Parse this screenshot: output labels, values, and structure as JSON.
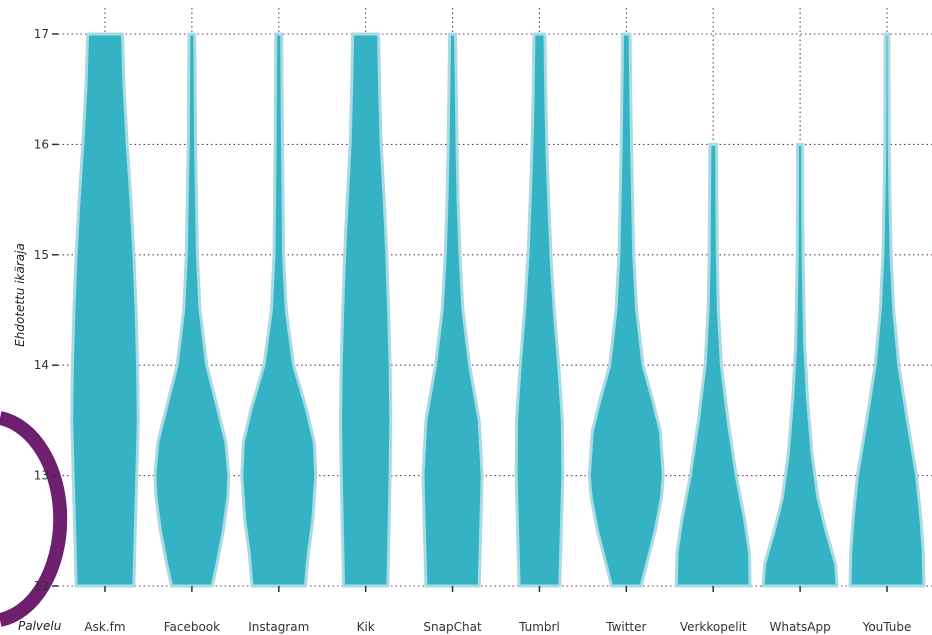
{
  "colors": {
    "violin_fill": "#35b3c5",
    "violin_outline": "#a9dbe2",
    "grid": "#7b2a78",
    "decor_arc": "#6e1f6e",
    "text": "#333333"
  },
  "chart_data": {
    "type": "violin",
    "title": "",
    "xlabel": "Palvelu",
    "ylabel": "Ehdotettu ikäraja",
    "ylim": [
      12,
      17
    ],
    "yticks": [
      "12",
      "13",
      "14",
      "15",
      "16",
      "17"
    ],
    "grid": true,
    "grid_style": "dotted",
    "categories": [
      "Ask.fm",
      "Facebook",
      "Instagram",
      "Kik",
      "SnapChat",
      "Tumbrl",
      "Twitter",
      "Verkkopelit",
      "WhatsApp",
      "YouTube"
    ],
    "violins": [
      {
        "category": "Ask.fm",
        "min": 12,
        "max": 17,
        "profile": [
          [
            12,
            0.78
          ],
          [
            12.5,
            0.82
          ],
          [
            13,
            0.86
          ],
          [
            13.5,
            0.9
          ],
          [
            14,
            0.88
          ],
          [
            14.5,
            0.84
          ],
          [
            15,
            0.78
          ],
          [
            15.5,
            0.7
          ],
          [
            16,
            0.6
          ],
          [
            16.5,
            0.52
          ],
          [
            17,
            0.47
          ]
        ]
      },
      {
        "category": "Facebook",
        "min": 12,
        "max": 17,
        "profile": [
          [
            12,
            0.55
          ],
          [
            12.2,
            0.68
          ],
          [
            12.5,
            0.85
          ],
          [
            12.8,
            0.97
          ],
          [
            13,
            1.0
          ],
          [
            13.3,
            0.92
          ],
          [
            13.6,
            0.7
          ],
          [
            14,
            0.4
          ],
          [
            14.5,
            0.22
          ],
          [
            15,
            0.15
          ],
          [
            16,
            0.1
          ],
          [
            17,
            0.08
          ]
        ]
      },
      {
        "category": "Instagram",
        "min": 12,
        "max": 17,
        "profile": [
          [
            12,
            0.72
          ],
          [
            12.3,
            0.8
          ],
          [
            12.6,
            0.92
          ],
          [
            13,
            1.0
          ],
          [
            13.3,
            0.96
          ],
          [
            13.6,
            0.75
          ],
          [
            14,
            0.4
          ],
          [
            14.5,
            0.2
          ],
          [
            15,
            0.13
          ],
          [
            16,
            0.1
          ],
          [
            17,
            0.08
          ]
        ]
      },
      {
        "category": "Kik",
        "min": 12,
        "max": 17,
        "profile": [
          [
            12,
            0.6
          ],
          [
            12.5,
            0.63
          ],
          [
            13,
            0.66
          ],
          [
            13.5,
            0.68
          ],
          [
            14,
            0.66
          ],
          [
            14.5,
            0.62
          ],
          [
            15,
            0.57
          ],
          [
            15.5,
            0.5
          ],
          [
            16,
            0.42
          ],
          [
            16.5,
            0.38
          ],
          [
            17,
            0.35
          ]
        ]
      },
      {
        "category": "SnapChat",
        "min": 12,
        "max": 17,
        "profile": [
          [
            12,
            0.72
          ],
          [
            12.5,
            0.76
          ],
          [
            13,
            0.8
          ],
          [
            13.5,
            0.72
          ],
          [
            14,
            0.46
          ],
          [
            14.5,
            0.28
          ],
          [
            15,
            0.2
          ],
          [
            15.5,
            0.15
          ],
          [
            16,
            0.12
          ],
          [
            16.5,
            0.1
          ],
          [
            17,
            0.08
          ]
        ]
      },
      {
        "category": "Tumbrl",
        "min": 12,
        "max": 17,
        "profile": [
          [
            12,
            0.55
          ],
          [
            12.5,
            0.59
          ],
          [
            13,
            0.63
          ],
          [
            13.5,
            0.62
          ],
          [
            14,
            0.52
          ],
          [
            14.5,
            0.4
          ],
          [
            15,
            0.31
          ],
          [
            15.5,
            0.25
          ],
          [
            16,
            0.2
          ],
          [
            16.5,
            0.17
          ],
          [
            17,
            0.15
          ]
        ]
      },
      {
        "category": "Twitter",
        "min": 12,
        "max": 17,
        "profile": [
          [
            12,
            0.4
          ],
          [
            12.2,
            0.55
          ],
          [
            12.5,
            0.78
          ],
          [
            12.8,
            0.95
          ],
          [
            13,
            1.0
          ],
          [
            13.4,
            0.92
          ],
          [
            13.7,
            0.7
          ],
          [
            14,
            0.45
          ],
          [
            14.5,
            0.28
          ],
          [
            15,
            0.2
          ],
          [
            16,
            0.14
          ],
          [
            17,
            0.1
          ]
        ]
      },
      {
        "category": "Verkkopelit",
        "min": 12,
        "max": 16,
        "profile": [
          [
            12,
            1.0
          ],
          [
            12.3,
            0.98
          ],
          [
            12.6,
            0.85
          ],
          [
            13,
            0.62
          ],
          [
            13.5,
            0.4
          ],
          [
            14,
            0.22
          ],
          [
            14.5,
            0.14
          ],
          [
            15,
            0.11
          ],
          [
            15.5,
            0.1
          ],
          [
            16,
            0.09
          ]
        ]
      },
      {
        "category": "WhatsApp",
        "min": 12,
        "max": 16,
        "profile": [
          [
            12,
            1.0
          ],
          [
            12.2,
            0.96
          ],
          [
            12.5,
            0.7
          ],
          [
            12.8,
            0.48
          ],
          [
            13.2,
            0.32
          ],
          [
            13.7,
            0.2
          ],
          [
            14.2,
            0.12
          ],
          [
            15,
            0.08
          ],
          [
            15.5,
            0.07
          ],
          [
            16,
            0.07
          ]
        ]
      },
      {
        "category": "YouTube",
        "min": 12,
        "max": 17,
        "profile": [
          [
            12,
            1.0
          ],
          [
            12.3,
            0.98
          ],
          [
            12.6,
            0.92
          ],
          [
            13,
            0.8
          ],
          [
            13.5,
            0.55
          ],
          [
            14,
            0.32
          ],
          [
            14.5,
            0.18
          ],
          [
            15,
            0.11
          ],
          [
            15.5,
            0.08
          ],
          [
            16,
            0.06
          ],
          [
            17,
            0.05
          ]
        ]
      }
    ]
  }
}
